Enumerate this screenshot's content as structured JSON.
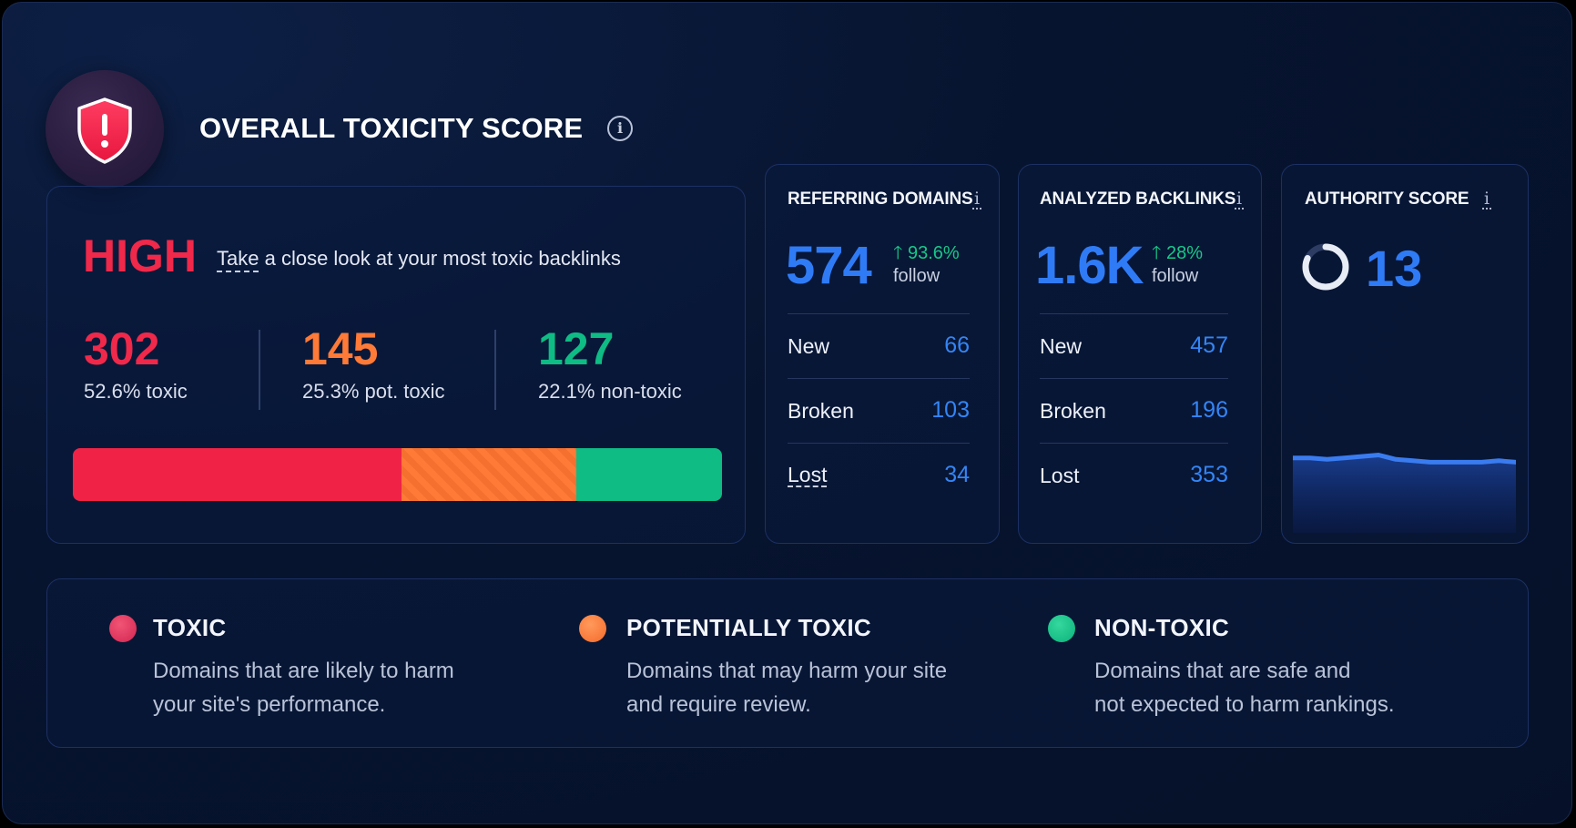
{
  "header": {
    "title": "OVERALL TOXICITY SCORE",
    "info_icon": "info-icon",
    "shield_icon": "shield-alert-icon"
  },
  "score": {
    "level": "HIGH",
    "subtitle_first": "Take",
    "subtitle_rest": " a close look at your most toxic backlinks",
    "metrics": [
      {
        "value": "302",
        "label": "52.6% toxic",
        "color": "#f0284a"
      },
      {
        "value": "145",
        "label": "25.3% pot. toxic",
        "color": "#ff7a37"
      },
      {
        "value": "127",
        "label": "22.1% non-toxic",
        "color": "#0ebc84"
      }
    ],
    "bar_shares": {
      "toxic": 0.526,
      "potentially_toxic": 0.253,
      "non_toxic": 0.221
    }
  },
  "referring_domains": {
    "title": "REFERRING DOMAINS",
    "info": "i",
    "value": "574",
    "trend": "93.6%",
    "trend_sub": "follow",
    "rows": [
      {
        "label": "New",
        "value": "66"
      },
      {
        "label": "Broken",
        "value": "103"
      },
      {
        "label": "Lost",
        "value": "34"
      }
    ]
  },
  "analyzed_backlinks": {
    "title": "ANALYZED BACKLINKS",
    "info": "i",
    "value": "1.6K",
    "trend": "28%",
    "trend_sub": "follow",
    "rows": [
      {
        "label": "New",
        "value": "457"
      },
      {
        "label": "Broken",
        "value": "196"
      },
      {
        "label": "Lost",
        "value": "353"
      }
    ]
  },
  "authority": {
    "title": "AUTHORITY SCORE",
    "info": "i",
    "value": "13",
    "ring_fraction": 0.13,
    "trend_values": [
      52,
      52,
      51,
      52,
      53,
      54,
      51,
      50,
      49,
      49,
      49,
      49,
      50,
      49
    ]
  },
  "legend": [
    {
      "title": "TOXIC",
      "line1": "Domains that are likely to harm",
      "line2": "your site's performance.",
      "color": "#e8345a"
    },
    {
      "title": "POTENTIALLY TOXIC",
      "line1": "Domains that may harm your site",
      "line2": "and require review.",
      "color": "#ff7d3a"
    },
    {
      "title": "NON-TOXIC",
      "line1": "Domains that are safe and",
      "line2": "not expected to harm rankings.",
      "color": "#10c285"
    }
  ]
}
